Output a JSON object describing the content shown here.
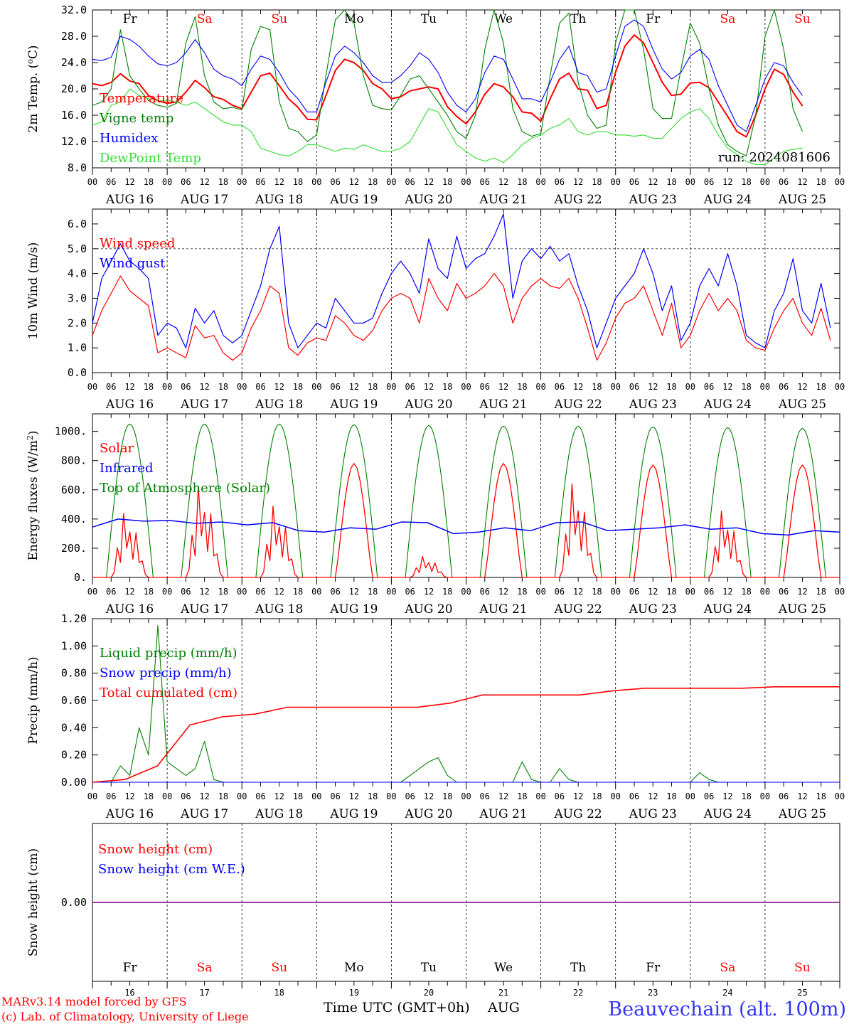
{
  "colors": {
    "red": "#ff0000",
    "green": "#008000",
    "blue": "#0000ff",
    "lightgreen": "#33dd33",
    "purple": "#800080",
    "grid": "#888888",
    "station_blue": "#3333ff"
  },
  "days": {
    "abbr": [
      "Fr",
      "Sa",
      "Su",
      "Mo",
      "Tu",
      "We",
      "Th",
      "Fr",
      "Sa",
      "Su"
    ],
    "weekend": [
      false,
      true,
      true,
      false,
      false,
      false,
      false,
      false,
      true,
      true
    ],
    "dates": [
      "AUG 16",
      "AUG 17",
      "AUG 18",
      "AUG 19",
      "AUG 20",
      "AUG 21",
      "AUG 22",
      "AUG 23",
      "AUG 24",
      "AUG 25"
    ],
    "numbers": [
      "16",
      "17",
      "18",
      "19",
      "20",
      "21",
      "22",
      "23",
      "24",
      "25"
    ],
    "hour_labels": [
      "00",
      "06",
      "12",
      "18"
    ],
    "final_hour_label": "00"
  },
  "footer": {
    "model_line": "MARv3.14 model forced by GFS",
    "lab_line": "(c) Lab. of Climatology, University of Liege",
    "time_axis_label": "Time UTC (GMT+0h)",
    "month": "AUG",
    "station": "Beauvechain (alt. 100m)"
  },
  "chart_data": [
    {
      "type": "line",
      "ylabel": "2m Temp. (oC)",
      "ylim": [
        8,
        32
      ],
      "yticks": [
        "8.0",
        "12.0",
        "16.0",
        "20.0",
        "24.0",
        "28.0",
        "32.0"
      ],
      "annotation": "run: 2024081606",
      "x_hours": [
        0,
        3,
        6,
        9,
        12,
        15,
        18,
        21,
        24,
        27,
        30,
        33,
        36,
        39,
        42,
        45,
        48,
        51,
        54,
        57,
        60,
        63,
        66,
        69,
        72,
        75,
        78,
        81,
        84,
        87,
        90,
        93,
        96,
        99,
        102,
        105,
        108,
        111,
        114,
        117,
        120,
        123,
        126,
        129,
        132,
        135,
        138,
        141,
        144,
        147,
        150,
        153,
        156,
        159,
        162,
        165,
        168,
        171,
        174,
        177,
        180,
        183,
        186,
        189,
        192,
        195,
        198,
        201,
        204,
        207,
        210,
        213,
        216,
        219,
        222,
        225,
        228,
        231,
        234,
        237,
        240
      ],
      "series": [
        {
          "name": "Temperature",
          "color": "#ff0000",
          "values": [
            20.8,
            20.5,
            21.0,
            22.3,
            21.2,
            20.8,
            19.0,
            18.2,
            17.8,
            18.0,
            19.5,
            21.3,
            20.2,
            18.8,
            18.4,
            17.5,
            17.0,
            19.5,
            22.0,
            22.4,
            20.5,
            18.5,
            17.2,
            15.4,
            15.3,
            19.0,
            22.8,
            24.5,
            24.0,
            22.8,
            20.8,
            20.0,
            18.5,
            18.8,
            19.7,
            20.0,
            20.3,
            20.0,
            17.3,
            15.8,
            14.7,
            16.5,
            19.2,
            20.8,
            20.3,
            18.8,
            16.5,
            16.3,
            15.1,
            18.5,
            21.5,
            22.4,
            20.0,
            19.8,
            17.0,
            17.5,
            22.5,
            26.5,
            28.2,
            27.0,
            24.0,
            21.0,
            19.0,
            19.2,
            20.9,
            21.0,
            20.2,
            18.0,
            15.8,
            13.5,
            12.7,
            16.0,
            20.0,
            23.0,
            22.2,
            19.5,
            17.4
          ]
        },
        {
          "name": "Vigne temp",
          "color": "#008000",
          "values": [
            17.5,
            18.0,
            20.0,
            29.0,
            22.0,
            20.0,
            18.2,
            17.5,
            17.2,
            17.8,
            27.0,
            31.0,
            22.0,
            18.0,
            17.0,
            17.2,
            16.8,
            26.0,
            29.5,
            29.0,
            18.0,
            14.0,
            13.5,
            12.0,
            13.0,
            22.0,
            30.5,
            32.5,
            30.0,
            22.0,
            17.5,
            17.0,
            16.8,
            19.0,
            21.5,
            22.0,
            20.0,
            18.0,
            16.0,
            13.5,
            12.5,
            16.0,
            26.0,
            32.0,
            27.0,
            17.0,
            13.5,
            12.8,
            13.2,
            22.0,
            30.0,
            31.5,
            21.0,
            16.0,
            14.0,
            14.5,
            27.0,
            32.5,
            32.0,
            26.0,
            17.0,
            15.5,
            15.5,
            23.0,
            30.0,
            27.0,
            20.0,
            14.5,
            11.5,
            10.5,
            9.8,
            16.0,
            28.0,
            32.5,
            26.0,
            17.0,
            13.5
          ]
        },
        {
          "name": "Humidex",
          "color": "#0000ff",
          "values": [
            24.5,
            24.3,
            24.8,
            28.0,
            27.5,
            26.5,
            25.0,
            23.8,
            23.5,
            24.0,
            25.5,
            27.5,
            25.5,
            23.0,
            22.0,
            21.5,
            20.5,
            23.0,
            25.0,
            24.5,
            22.5,
            20.0,
            18.5,
            16.5,
            16.5,
            21.0,
            25.0,
            26.5,
            25.5,
            24.0,
            22.0,
            21.0,
            21.0,
            22.0,
            23.5,
            25.5,
            24.5,
            22.5,
            19.5,
            17.5,
            16.5,
            18.5,
            22.5,
            25.0,
            24.5,
            21.5,
            18.5,
            18.5,
            18.0,
            21.0,
            24.5,
            26.5,
            22.5,
            22.0,
            19.5,
            20.0,
            25.0,
            29.5,
            30.5,
            29.5,
            26.0,
            23.0,
            21.5,
            22.5,
            25.0,
            26.0,
            24.5,
            20.5,
            17.5,
            14.5,
            13.5,
            17.5,
            21.5,
            24.0,
            23.5,
            21.0,
            19.0
          ]
        },
        {
          "name": "DewPoint Temp",
          "color": "#33dd33",
          "values": [
            14.5,
            15.0,
            17.5,
            18.0,
            20.0,
            19.0,
            18.5,
            18.2,
            18.3,
            18.0,
            17.5,
            18.0,
            17.0,
            16.0,
            15.0,
            14.5,
            14.5,
            13.5,
            11.0,
            10.5,
            10.0,
            9.8,
            10.5,
            11.5,
            11.5,
            11.0,
            10.5,
            11.0,
            10.8,
            11.5,
            11.0,
            10.5,
            10.5,
            11.0,
            12.0,
            14.5,
            17.0,
            16.5,
            14.0,
            11.5,
            10.5,
            9.5,
            9.0,
            9.5,
            8.8,
            10.0,
            11.5,
            12.5,
            13.0,
            14.0,
            14.5,
            15.5,
            13.5,
            13.0,
            13.5,
            13.5,
            13.0,
            13.0,
            12.8,
            13.0,
            12.5,
            12.5,
            14.0,
            15.5,
            16.5,
            17.0,
            15.5,
            13.0,
            11.0,
            10.0,
            9.0,
            8.5,
            8.5,
            9.5,
            10.5,
            10.8,
            11.0
          ]
        }
      ]
    },
    {
      "type": "line",
      "ylabel": "10m Wind (m/s)",
      "ylim": [
        0,
        6.5
      ],
      "yticks": [
        "0.0",
        "1.0",
        "2.0",
        "3.0",
        "4.0",
        "5.0",
        "6.0"
      ],
      "reference_line": 5.0,
      "x_hours": [
        0,
        3,
        6,
        9,
        12,
        15,
        18,
        21,
        24,
        27,
        30,
        33,
        36,
        39,
        42,
        45,
        48,
        51,
        54,
        57,
        60,
        63,
        66,
        69,
        72,
        75,
        78,
        81,
        84,
        87,
        90,
        93,
        96,
        99,
        102,
        105,
        108,
        111,
        114,
        117,
        120,
        123,
        126,
        129,
        132,
        135,
        138,
        141,
        144,
        147,
        150,
        153,
        156,
        159,
        162,
        165,
        168,
        171,
        174,
        177,
        180,
        183,
        186,
        189,
        192,
        195,
        198,
        201,
        204,
        207,
        210,
        213,
        216,
        219,
        222,
        225,
        228,
        231,
        234,
        237,
        240
      ],
      "series": [
        {
          "name": "Wind speed",
          "color": "#ff0000",
          "values": [
            1.5,
            2.5,
            3.2,
            3.9,
            3.3,
            3.0,
            2.7,
            0.8,
            1.0,
            0.8,
            0.6,
            1.9,
            1.4,
            1.5,
            0.8,
            0.5,
            0.8,
            1.8,
            2.5,
            3.5,
            3.2,
            1.0,
            0.7,
            1.2,
            1.4,
            1.3,
            2.3,
            2.0,
            1.5,
            1.3,
            1.7,
            2.5,
            3.0,
            3.2,
            3.0,
            2.0,
            3.8,
            3.0,
            2.5,
            3.6,
            3.0,
            3.2,
            3.5,
            4.0,
            3.5,
            2.0,
            3.0,
            3.5,
            3.8,
            3.5,
            3.4,
            3.8,
            3.0,
            1.8,
            0.5,
            1.2,
            2.2,
            2.8,
            3.0,
            3.5,
            2.5,
            1.5,
            2.8,
            1.0,
            1.5,
            2.5,
            3.2,
            2.5,
            3.0,
            2.5,
            1.3,
            1.0,
            0.9,
            1.8,
            2.5,
            3.0,
            2.0,
            1.5,
            2.6,
            1.3
          ]
        },
        {
          "name": "Wind gust",
          "color": "#0000ff",
          "values": [
            2.0,
            3.8,
            4.5,
            5.2,
            4.5,
            4.2,
            3.8,
            1.5,
            2.0,
            1.8,
            1.0,
            2.6,
            2.0,
            2.5,
            1.5,
            1.2,
            1.5,
            2.5,
            3.5,
            5.0,
            5.9,
            2.0,
            1.0,
            1.5,
            2.0,
            1.8,
            3.0,
            2.5,
            2.0,
            2.0,
            2.2,
            3.2,
            4.0,
            4.5,
            4.0,
            3.2,
            5.4,
            4.2,
            3.8,
            5.5,
            4.2,
            4.6,
            4.8,
            5.5,
            6.4,
            3.0,
            4.5,
            5.0,
            4.6,
            5.1,
            4.5,
            4.8,
            3.5,
            2.5,
            1.0,
            2.0,
            3.0,
            3.5,
            4.0,
            5.0,
            4.0,
            2.5,
            3.5,
            1.3,
            2.0,
            3.5,
            4.2,
            3.5,
            4.8,
            3.5,
            1.5,
            1.2,
            1.0,
            2.5,
            3.2,
            4.6,
            2.5,
            2.0,
            3.6,
            1.8
          ]
        }
      ]
    },
    {
      "type": "line",
      "ylabel": "Energy fluxes (W/m2)",
      "ylim": [
        0,
        1100
      ],
      "yticks": [
        "0.",
        "200.",
        "400.",
        "600.",
        "800.",
        "1000."
      ],
      "series": [
        {
          "name": "Solar",
          "color": "#ff0000",
          "daily_peaks": [
            520,
            740,
            580,
            780,
            170,
            780,
            760,
            770,
            540,
            770
          ]
        },
        {
          "name": "Infrared",
          "color": "#0000ff",
          "values": [
            345,
            400,
            385,
            390,
            370,
            380,
            360,
            375,
            320,
            310,
            340,
            330,
            380,
            375,
            300,
            310,
            340,
            320,
            375,
            380,
            320,
            330,
            340,
            360,
            330,
            340,
            300,
            290,
            320,
            310
          ]
        },
        {
          "name": "Top of Atmosphere (Solar)",
          "color": "#008000",
          "daily_peaks": [
            1050,
            1050,
            1050,
            1045,
            1040,
            1035,
            1035,
            1030,
            1025,
            1020
          ]
        }
      ]
    },
    {
      "type": "line",
      "ylabel": "Precip (mm/h)",
      "ylim": [
        0,
        1.2
      ],
      "yticks": [
        "0.00",
        "0.20",
        "0.40",
        "0.60",
        "0.80",
        "1.00",
        "1.20"
      ],
      "series": [
        {
          "name": "Liquid precip (mm/h)",
          "color": "#008000",
          "values": [
            0,
            0,
            0,
            0.12,
            0.05,
            0.4,
            0.2,
            1.15,
            0.15,
            0.1,
            0.05,
            0.1,
            0.3,
            0.02,
            0,
            0,
            0,
            0,
            0,
            0,
            0,
            0,
            0,
            0,
            0,
            0,
            0,
            0,
            0,
            0,
            0,
            0,
            0,
            0,
            0.05,
            0.1,
            0.15,
            0.18,
            0.05,
            0,
            0,
            0,
            0,
            0,
            0,
            0,
            0.15,
            0.02,
            0,
            0,
            0.1,
            0.02,
            0,
            0,
            0,
            0,
            0,
            0,
            0,
            0,
            0,
            0,
            0,
            0,
            0,
            0.07,
            0.02,
            0,
            0,
            0,
            0,
            0,
            0,
            0,
            0,
            0,
            0,
            0,
            0,
            0,
            0
          ]
        },
        {
          "name": "Snow precip (mm/h)",
          "color": "#0000ff",
          "values": [
            0,
            0
          ]
        },
        {
          "name": "Total cumulated (cm)",
          "color": "#ff0000",
          "values": [
            0,
            0.02,
            0.12,
            0.42,
            0.48,
            0.5,
            0.55,
            0.55,
            0.55,
            0.55,
            0.55,
            0.58,
            0.64,
            0.64,
            0.64,
            0.64,
            0.67,
            0.69,
            0.69,
            0.69,
            0.69,
            0.7,
            0.7,
            0.7
          ]
        }
      ]
    },
    {
      "type": "line",
      "ylabel": "Snow height (cm)",
      "yticks": [
        "0.00"
      ],
      "series": [
        {
          "name": "Snow height (cm)",
          "color": "#ff0000",
          "values": [
            0,
            0
          ]
        },
        {
          "name": "Snow height (cm W.E.)",
          "color": "#0000ff",
          "values": [
            0,
            0
          ]
        }
      ]
    }
  ]
}
